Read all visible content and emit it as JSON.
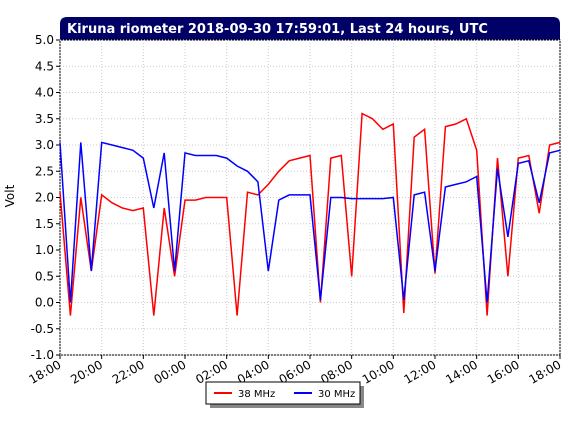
{
  "chart_data": {
    "type": "line",
    "title": "Kiruna riometer 2018-09-30 17:59:01, Last 24 hours, UTC",
    "y_label": "Volt",
    "x": [
      0,
      0.5,
      1,
      1.5,
      2,
      2.5,
      3,
      3.5,
      4,
      4.5,
      5,
      5.5,
      6,
      6.5,
      7,
      7.5,
      8,
      8.5,
      9,
      9.5,
      10,
      10.5,
      11,
      11.5,
      12,
      12.5,
      13,
      13.5,
      14,
      14.5,
      15,
      15.5,
      16,
      16.5,
      17,
      17.5,
      18,
      18.5,
      19,
      19.5,
      20,
      20.5,
      21,
      21.5,
      22,
      22.5,
      23,
      23.5,
      24
    ],
    "series": [
      {
        "name": "38 MHz",
        "color": "#ff0000",
        "values": [
          2.1,
          -0.25,
          2.0,
          0.6,
          2.05,
          1.9,
          1.8,
          1.75,
          1.8,
          -0.25,
          1.8,
          0.5,
          1.95,
          1.95,
          2.0,
          2.0,
          2.0,
          -0.25,
          2.1,
          2.05,
          2.25,
          2.5,
          2.7,
          2.75,
          2.8,
          0.0,
          2.75,
          2.8,
          0.5,
          3.6,
          3.5,
          3.3,
          3.4,
          -0.2,
          3.15,
          3.3,
          0.55,
          3.35,
          3.4,
          3.5,
          2.9,
          -0.25,
          2.75,
          0.5,
          2.75,
          2.8,
          1.7,
          3.0,
          3.05
        ]
      },
      {
        "name": "30 MHz",
        "color": "#0000ff",
        "values": [
          3.05,
          0.0,
          3.05,
          0.6,
          3.05,
          3.0,
          2.95,
          2.9,
          2.75,
          1.8,
          2.85,
          0.6,
          2.85,
          2.8,
          2.8,
          2.8,
          2.75,
          2.6,
          2.5,
          2.3,
          0.6,
          1.95,
          2.05,
          2.05,
          2.05,
          0.05,
          2.0,
          2.0,
          1.98,
          1.98,
          1.98,
          1.98,
          2.0,
          0.05,
          2.05,
          2.1,
          0.6,
          2.2,
          2.25,
          2.3,
          2.4,
          0.0,
          2.55,
          1.25,
          2.65,
          2.7,
          1.9,
          2.85,
          2.9
        ]
      }
    ],
    "xlim": [
      0,
      24
    ],
    "xticks": [
      {
        "value": 0,
        "label": "18:00"
      },
      {
        "value": 2,
        "label": "20:00"
      },
      {
        "value": 4,
        "label": "22:00"
      },
      {
        "value": 6,
        "label": "00:00"
      },
      {
        "value": 8,
        "label": "02:00"
      },
      {
        "value": 10,
        "label": "04:00"
      },
      {
        "value": 12,
        "label": "06:00"
      },
      {
        "value": 14,
        "label": "08:00"
      },
      {
        "value": 16,
        "label": "10:00"
      },
      {
        "value": 18,
        "label": "12:00"
      },
      {
        "value": 20,
        "label": "14:00"
      },
      {
        "value": 22,
        "label": "16:00"
      },
      {
        "value": 24,
        "label": "18:00"
      }
    ],
    "ylim": [
      -1,
      5
    ],
    "yticks": [
      {
        "value": -1,
        "label": "-1.0"
      },
      {
        "value": -0.5,
        "label": "-0.5"
      },
      {
        "value": 0,
        "label": "0.0"
      },
      {
        "value": 0.5,
        "label": "0.5"
      },
      {
        "value": 1,
        "label": "1.0"
      },
      {
        "value": 1.5,
        "label": "1.5"
      },
      {
        "value": 2,
        "label": "2.0"
      },
      {
        "value": 2.5,
        "label": "2.5"
      },
      {
        "value": 3,
        "label": "3.0"
      },
      {
        "value": 3.5,
        "label": "3.5"
      },
      {
        "value": 4,
        "label": "4.0"
      },
      {
        "value": 4.5,
        "label": "4.5"
      },
      {
        "value": 5,
        "label": "5.0"
      }
    ],
    "grid": true
  }
}
